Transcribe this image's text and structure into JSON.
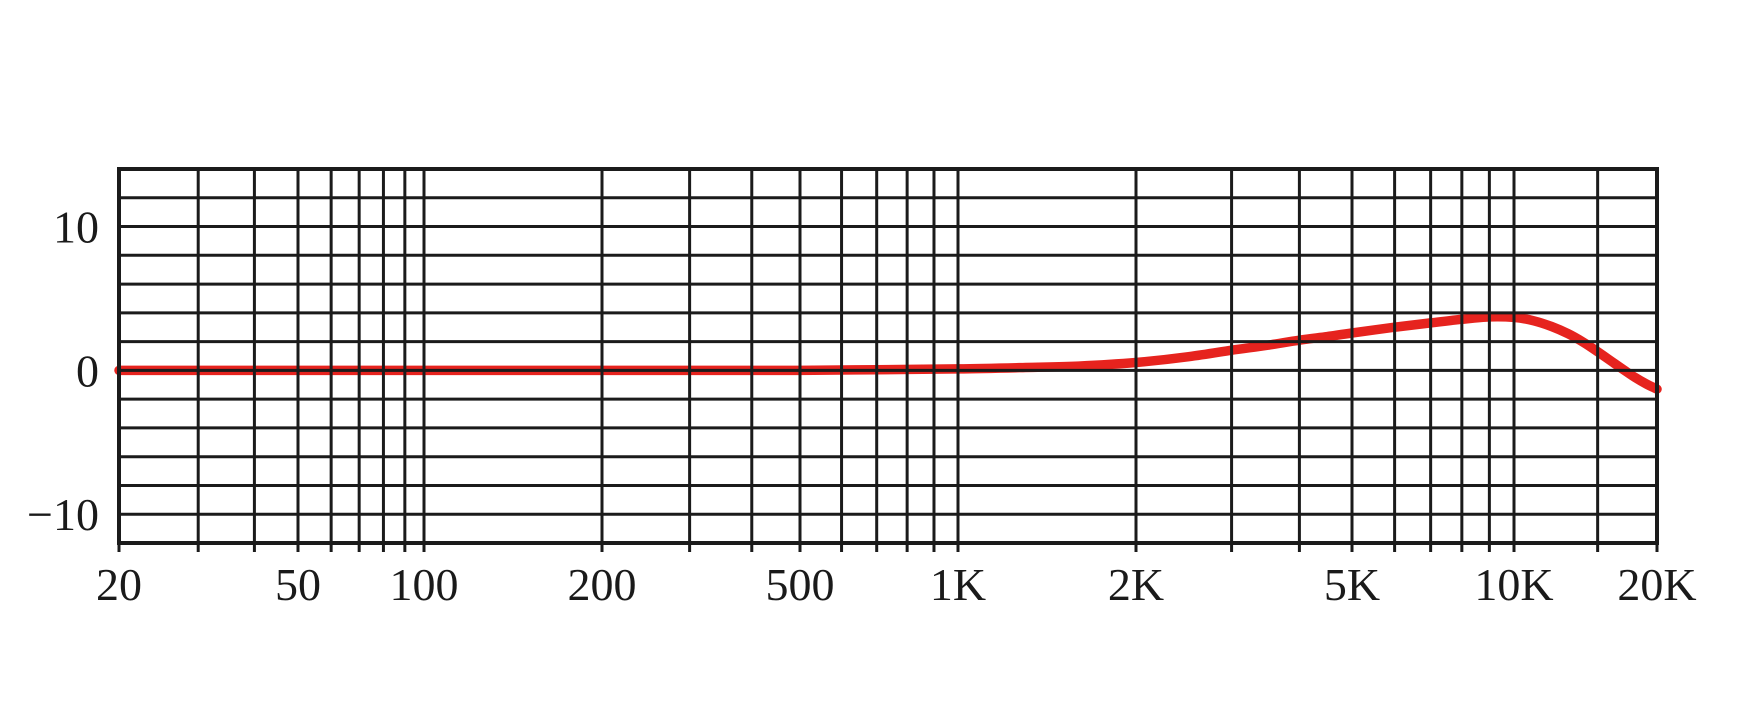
{
  "chart_data": {
    "type": "line",
    "title": "",
    "subtitle": "",
    "xlabel": "",
    "ylabel": "",
    "legend": false,
    "grid": true,
    "x_axis": {
      "scale": "log",
      "unit": "Hz",
      "min": 20,
      "max": 20000,
      "tick_labels": [
        "20",
        "50",
        "100",
        "200",
        "500",
        "1K",
        "2K",
        "5K",
        "10K",
        "20K"
      ],
      "tick_values": [
        20,
        50,
        100,
        200,
        500,
        1000,
        2000,
        5000,
        10000,
        20000
      ],
      "minor_gridlines": [
        30,
        40,
        60,
        70,
        80,
        90,
        300,
        400,
        600,
        700,
        800,
        900,
        3000,
        4000,
        6000,
        7000,
        8000,
        9000,
        15000
      ]
    },
    "y_axis": {
      "unit": "dB",
      "min": -12,
      "max": 14,
      "gridline_step": 2,
      "tick_labels": [
        "10",
        "0",
        "−10"
      ],
      "tick_values": [
        10,
        0,
        -10
      ]
    },
    "series": [
      {
        "name": "frequency-response",
        "color": "#e6231e",
        "points": [
          [
            20,
            0
          ],
          [
            30,
            0
          ],
          [
            50,
            0
          ],
          [
            70,
            0
          ],
          [
            100,
            0
          ],
          [
            150,
            0
          ],
          [
            200,
            0
          ],
          [
            300,
            0
          ],
          [
            400,
            0
          ],
          [
            500,
            0
          ],
          [
            700,
            0.05
          ],
          [
            1000,
            0.1
          ],
          [
            1300,
            0.2
          ],
          [
            1600,
            0.3
          ],
          [
            2000,
            0.55
          ],
          [
            2500,
            0.95
          ],
          [
            3000,
            1.4
          ],
          [
            3500,
            1.75
          ],
          [
            4000,
            2.1
          ],
          [
            4500,
            2.35
          ],
          [
            5000,
            2.6
          ],
          [
            6000,
            3.0
          ],
          [
            7000,
            3.3
          ],
          [
            8000,
            3.55
          ],
          [
            9000,
            3.72
          ],
          [
            10000,
            3.68
          ],
          [
            11000,
            3.45
          ],
          [
            12000,
            3.05
          ],
          [
            13000,
            2.55
          ],
          [
            14000,
            1.95
          ],
          [
            15000,
            1.3
          ],
          [
            16000,
            0.65
          ],
          [
            17000,
            0.05
          ],
          [
            18000,
            -0.5
          ],
          [
            19000,
            -0.95
          ],
          [
            20000,
            -1.3
          ]
        ]
      }
    ]
  },
  "colors": {
    "background": "#ffffff",
    "grid": "#1b1b1b",
    "curve": "#e6231e"
  }
}
